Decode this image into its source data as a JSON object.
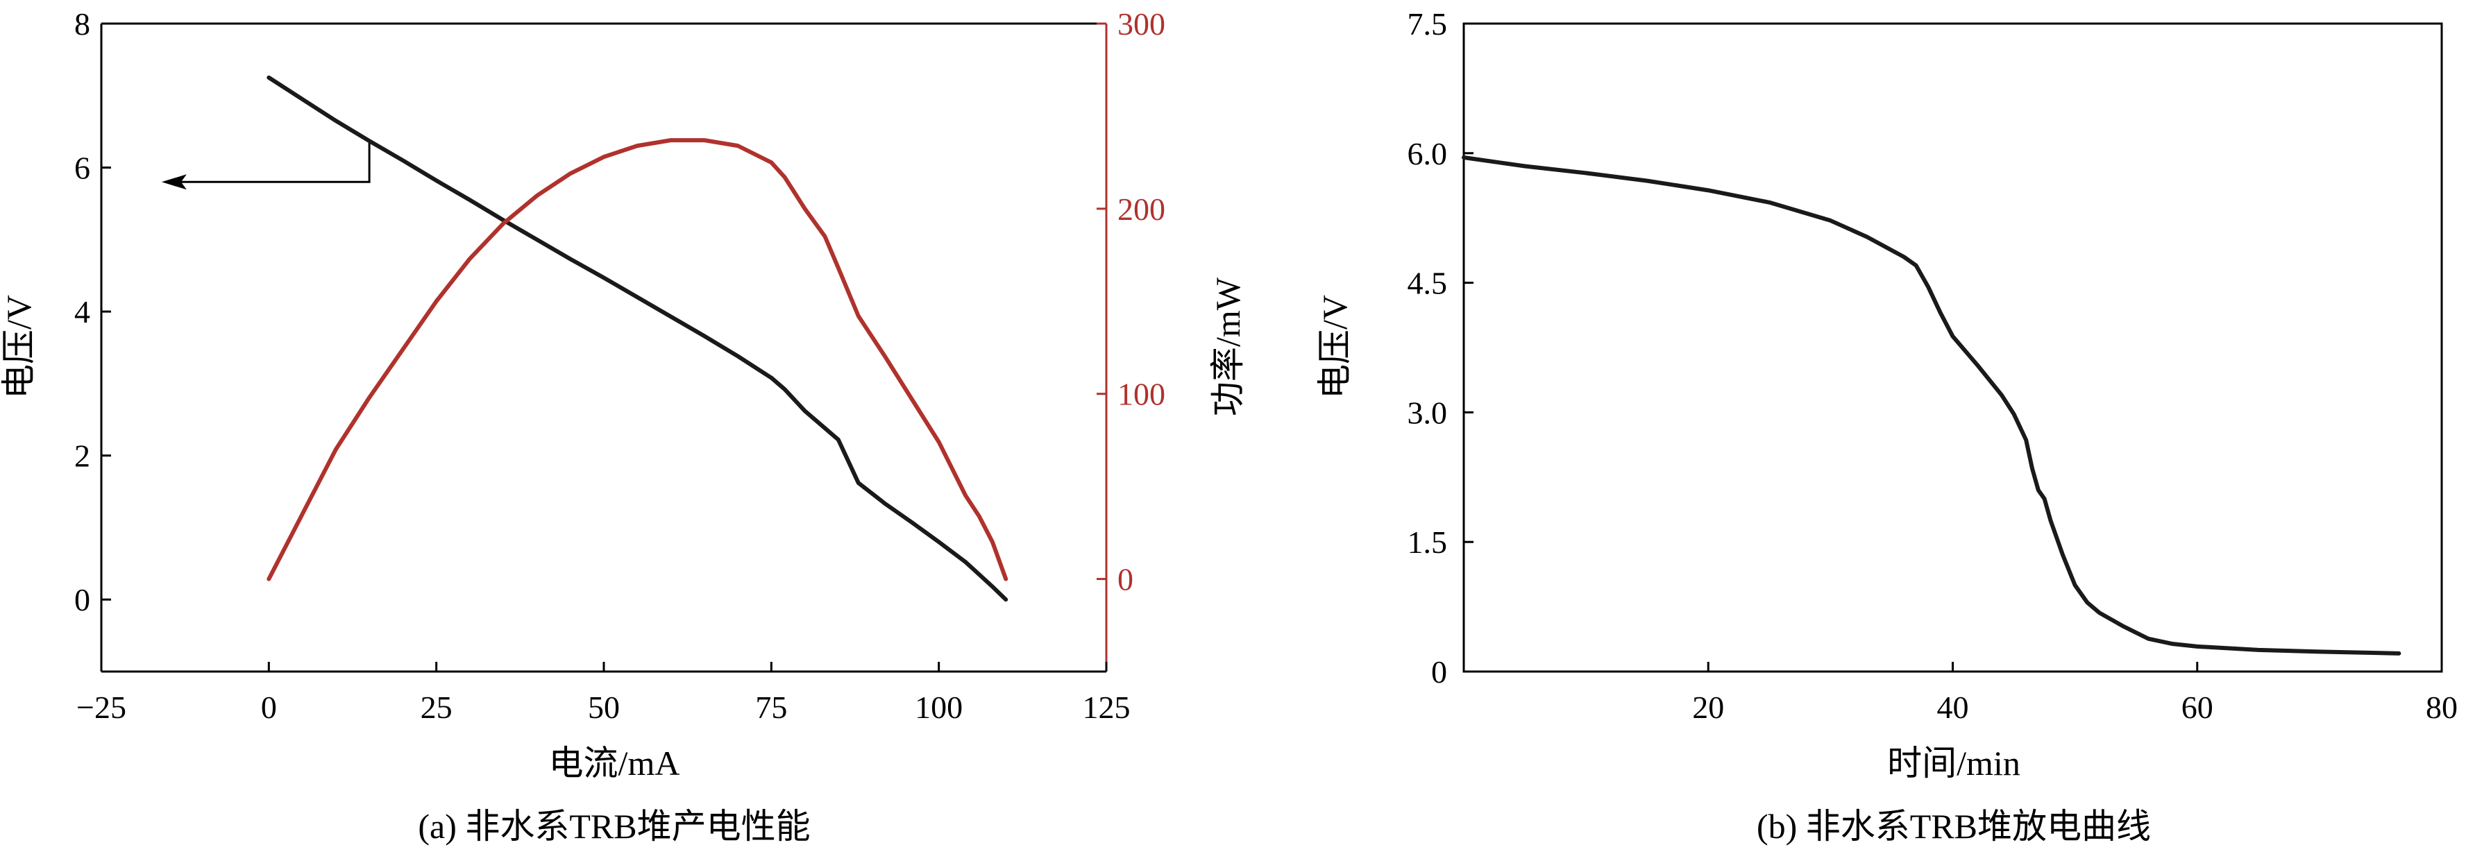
{
  "colors": {
    "voltage": "#1a1a1a",
    "power": "#b0322d",
    "axis": "#000000"
  },
  "chart_data": [
    {
      "type": "line",
      "caption": "(a) 非水系TRB堆产电性能",
      "xlabel": "电流/mA",
      "ylabel": "电压/V",
      "y2label": "功率/mW",
      "xlim": [
        -25,
        125
      ],
      "ylim": [
        -1,
        8
      ],
      "y2lim": [
        -50,
        300
      ],
      "xticks": [
        -25,
        0,
        25,
        50,
        75,
        100,
        125
      ],
      "xtick_labels": [
        "−25",
        "0",
        "25",
        "50",
        "75",
        "100",
        "125"
      ],
      "yticks": [
        0,
        2,
        4,
        6,
        8
      ],
      "ytick_labels": [
        "0",
        "2",
        "4",
        "6",
        "8"
      ],
      "y2ticks": [
        0,
        100,
        200,
        300
      ],
      "y2tick_labels": [
        "0",
        "100",
        "200",
        "300"
      ],
      "grid": false,
      "annotation": {
        "type": "arrow",
        "from": [
          15,
          6.35
        ],
        "corner": [
          15,
          5.8
        ],
        "to": [
          -16,
          5.8
        ],
        "meaning": "voltage curve reads on left axis"
      },
      "series": [
        {
          "axis": "left",
          "color": "voltage",
          "x": [
            0,
            5,
            10,
            15,
            20,
            25,
            30,
            35,
            40,
            45,
            50,
            55,
            60,
            65,
            70,
            75,
            77,
            80,
            85,
            88,
            92,
            96,
            100,
            104,
            108,
            110
          ],
          "y": [
            7.25,
            6.95,
            6.65,
            6.37,
            6.1,
            5.82,
            5.55,
            5.27,
            5.0,
            4.73,
            4.47,
            4.2,
            3.93,
            3.66,
            3.38,
            3.08,
            2.92,
            2.62,
            2.22,
            1.62,
            1.33,
            1.07,
            0.8,
            0.52,
            0.18,
            0.0
          ]
        },
        {
          "axis": "right",
          "color": "power",
          "x": [
            0,
            5,
            10,
            15,
            20,
            25,
            30,
            35,
            40,
            45,
            50,
            55,
            60,
            65,
            70,
            75,
            77,
            80,
            83,
            85,
            88,
            92,
            96,
            100,
            104,
            106,
            108,
            110
          ],
          "y": [
            0,
            35,
            70,
            98,
            124,
            150,
            173,
            192,
            207,
            219,
            228,
            234,
            237,
            237,
            234,
            225,
            217,
            200,
            185,
            168,
            142,
            120,
            97,
            74,
            45,
            34,
            20,
            0
          ]
        }
      ]
    },
    {
      "type": "line",
      "caption": "(b) 非水系TRB堆放电曲线",
      "xlabel": "时间/min",
      "ylabel": "电压/V",
      "xlim": [
        0,
        80
      ],
      "ylim": [
        0,
        7.5
      ],
      "xticks": [
        20,
        40,
        60,
        80
      ],
      "xtick_labels": [
        "20",
        "40",
        "60",
        "80"
      ],
      "yticks": [
        0,
        1.5,
        3.0,
        4.5,
        6.0,
        7.5
      ],
      "ytick_labels": [
        "0",
        "1.5",
        "3.0",
        "4.5",
        "6.0",
        "7.5"
      ],
      "grid": false,
      "series": [
        {
          "color": "voltage",
          "x": [
            0,
            5,
            10,
            15,
            20,
            25,
            30,
            33,
            36,
            37,
            38,
            39,
            40,
            42,
            44,
            45,
            46,
            46.5,
            47,
            47.5,
            48,
            49,
            50,
            51,
            52,
            54,
            56,
            58,
            60,
            65,
            70,
            76.5
          ],
          "y": [
            5.95,
            5.85,
            5.77,
            5.68,
            5.57,
            5.43,
            5.22,
            5.03,
            4.8,
            4.7,
            4.45,
            4.15,
            3.88,
            3.55,
            3.2,
            2.98,
            2.68,
            2.35,
            2.1,
            2.0,
            1.75,
            1.35,
            1.0,
            0.8,
            0.68,
            0.52,
            0.38,
            0.32,
            0.29,
            0.25,
            0.23,
            0.21
          ]
        }
      ]
    }
  ]
}
